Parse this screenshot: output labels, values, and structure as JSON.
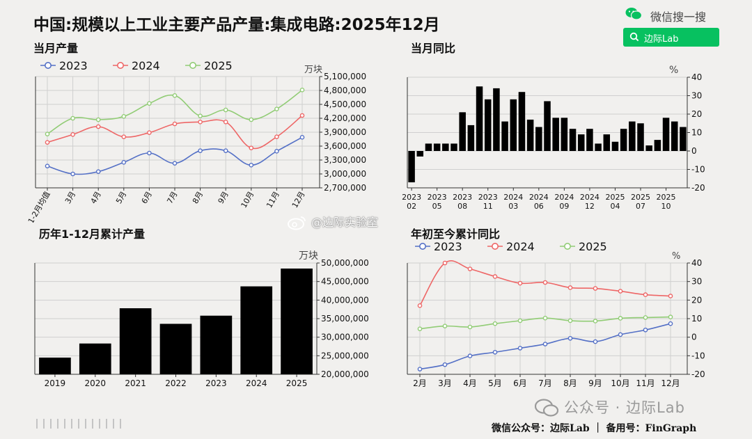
{
  "title": "中国:规模以上工业主要产品产量:集成电路:2025年12月",
  "brand": {
    "wechat_search": "微信搜一搜",
    "search_label": "边际Lab",
    "watermark_center": "@边际实验室",
    "watermark_bottom": "公众号 · 边际Lab",
    "footer": "微信公众号：边际Lab ｜ 备用号：FinGraph",
    "accent": "#07c160"
  },
  "chart_data": [
    {
      "id": "monthly",
      "type": "line",
      "title": "当月产量",
      "unit": "万块",
      "categories": [
        "1-2月均值",
        "3月",
        "4月",
        "5月",
        "6月",
        "7月",
        "8月",
        "9月",
        "10月",
        "11月",
        "12月"
      ],
      "yticks": [
        "2,700,000",
        "3,000,000",
        "3,300,000",
        "3,600,000",
        "3,900,000",
        "4,200,000",
        "4,500,000",
        "4,800,000",
        "5,100,000"
      ],
      "ylim": [
        2700000,
        5100000
      ],
      "grid": true,
      "legend": "top-left",
      "series": [
        {
          "name": "2023",
          "color": "#5470c6",
          "values": [
            3170000,
            3000000,
            3050000,
            3250000,
            3450000,
            3230000,
            3500000,
            3500000,
            3190000,
            3490000,
            3790000
          ]
        },
        {
          "name": "2024",
          "color": "#ee6666",
          "values": [
            3680000,
            3850000,
            4020000,
            3800000,
            3890000,
            4080000,
            4120000,
            4120000,
            3560000,
            3800000,
            4260000
          ]
        },
        {
          "name": "2025",
          "color": "#91cc75",
          "values": [
            3860000,
            4200000,
            4170000,
            4240000,
            4520000,
            4690000,
            4250000,
            4380000,
            4170000,
            4400000,
            4810000
          ]
        }
      ]
    },
    {
      "id": "yoy",
      "type": "bar",
      "title": "当月同比",
      "unit": "%",
      "ylim": [
        -20,
        40
      ],
      "yticks": [
        "-20",
        "-10",
        "0",
        "10",
        "20",
        "30",
        "40"
      ],
      "grid": true,
      "color": "#000000",
      "xticks": [
        {
          "i": 0,
          "l": [
            "2023",
            "02"
          ]
        },
        {
          "i": 3,
          "l": [
            "2023",
            "05"
          ]
        },
        {
          "i": 6,
          "l": [
            "2023",
            "08"
          ]
        },
        {
          "i": 9,
          "l": [
            "2023",
            "11"
          ]
        },
        {
          "i": 12,
          "l": [
            "2024",
            "03"
          ]
        },
        {
          "i": 15,
          "l": [
            "2024",
            "06"
          ]
        },
        {
          "i": 18,
          "l": [
            "2024",
            "09"
          ]
        },
        {
          "i": 21,
          "l": [
            "2024",
            "12"
          ]
        },
        {
          "i": 24,
          "l": [
            "2025",
            "04"
          ]
        },
        {
          "i": 27,
          "l": [
            "2025",
            "07"
          ]
        },
        {
          "i": 30,
          "l": [
            "2025",
            "10"
          ]
        }
      ],
      "values": [
        -17,
        -3,
        4,
        4,
        4,
        4,
        21,
        14,
        35,
        28,
        34,
        16,
        28,
        32,
        17,
        13,
        27,
        18,
        18,
        12,
        9,
        12,
        4,
        9,
        5,
        12,
        16,
        15,
        3,
        6,
        18,
        16,
        13
      ]
    },
    {
      "id": "annual",
      "type": "bar",
      "title": "历年1-12月累计产量",
      "unit": "万块",
      "categories": [
        "2019",
        "2020",
        "2021",
        "2022",
        "2023",
        "2024",
        "2025"
      ],
      "values": [
        24500000,
        28300000,
        37800000,
        33600000,
        35800000,
        43700000,
        48500000
      ],
      "ylim": [
        20000000,
        50000000
      ],
      "yticks": [
        "20,000,000",
        "25,000,000",
        "30,000,000",
        "35,000,000",
        "40,000,000",
        "45,000,000",
        "50,000,000"
      ],
      "grid": true,
      "color": "#000000"
    },
    {
      "id": "cumyoy",
      "type": "line",
      "title": "年初至今累计同比",
      "unit": "%",
      "categories": [
        "2月",
        "3月",
        "4月",
        "5月",
        "6月",
        "7月",
        "8月",
        "9月",
        "10月",
        "11月",
        "12月"
      ],
      "ylim": [
        -20,
        40
      ],
      "yticks": [
        "-20",
        "-10",
        "0",
        "10",
        "20",
        "30",
        "40"
      ],
      "grid": true,
      "legend": "top-left",
      "series": [
        {
          "name": "2023",
          "color": "#5470c6",
          "values": [
            -17.2,
            -14.8,
            -10.1,
            -8.1,
            -5.9,
            -3.7,
            -0.6,
            -2.4,
            1.4,
            3.9,
            7.3
          ]
        },
        {
          "name": "2024",
          "color": "#ee6666",
          "values": [
            17.0,
            40.0,
            36.8,
            32.7,
            29.1,
            29.5,
            26.7,
            26.3,
            24.8,
            22.9,
            22.2
          ]
        },
        {
          "name": "2025",
          "color": "#91cc75",
          "values": [
            4.5,
            6.0,
            5.5,
            7.3,
            8.9,
            10.3,
            8.9,
            8.7,
            10.2,
            10.6,
            10.9
          ]
        }
      ]
    }
  ]
}
